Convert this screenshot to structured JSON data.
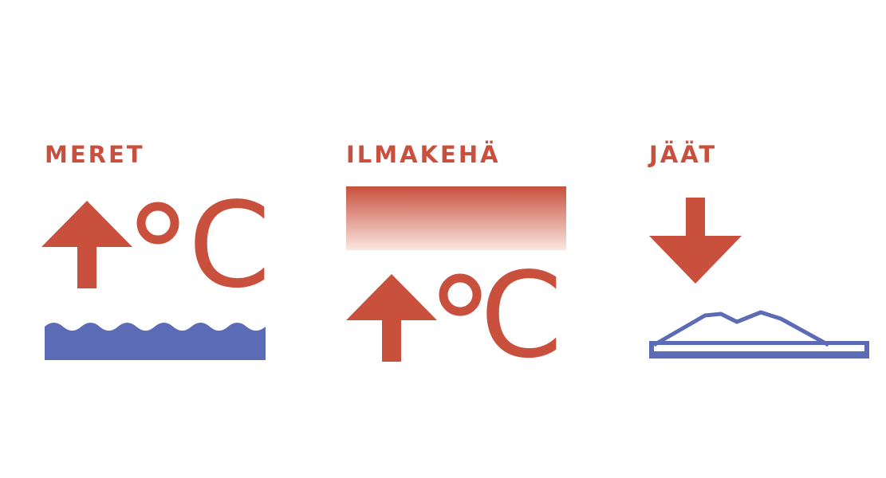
{
  "colors": {
    "red": "#c8503d",
    "blue": "#5b6bb5",
    "gradient_end": "#fbe7e1"
  },
  "panels": [
    {
      "id": "oceans",
      "label": "MERET",
      "celsius": "C",
      "icons": [
        "arrow-up-icon",
        "degree-icon",
        "waves-icon"
      ]
    },
    {
      "id": "atmosphere",
      "label": "ILMAKEHÄ",
      "celsius": "C",
      "icons": [
        "gradient-band-icon",
        "arrow-up-icon",
        "degree-icon"
      ]
    },
    {
      "id": "ice",
      "label": "JÄÄT",
      "icons": [
        "arrow-down-icon",
        "ice-sheet-icon"
      ]
    }
  ]
}
